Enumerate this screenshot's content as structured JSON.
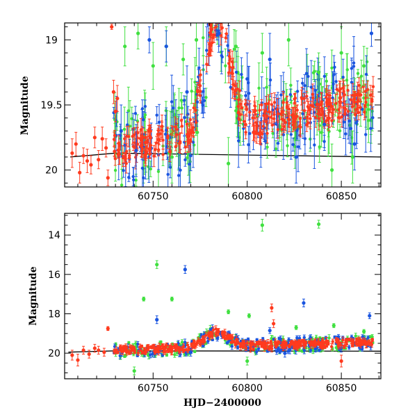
{
  "chart_data": [
    {
      "type": "scatter",
      "title": "",
      "xlabel": "",
      "ylabel": "Magnitude",
      "xlim": [
        60703,
        60871
      ],
      "ylim": [
        20.13,
        18.87
      ],
      "y_inverted": true,
      "xticks": [
        60750,
        60800,
        60850
      ],
      "yticks": [
        19,
        19.5,
        20
      ],
      "ytick_labels": [
        "19",
        "19.5",
        "20"
      ],
      "colors": {
        "red": "#ff3a1e",
        "green": "#40e040",
        "blue": "#1a55e0",
        "model": "#000000"
      },
      "model_line": {
        "x": [
          60706,
          60730,
          60871
        ],
        "y": [
          19.9,
          19.87,
          19.9
        ]
      },
      "series": [
        {
          "color_key": "red",
          "points": [
            [
              60707,
              19.87,
              0.11
            ],
            [
              60709,
              19.8,
              0.09
            ],
            [
              60711,
              20.02,
              0.08
            ],
            [
              60713,
              19.89,
              0.06
            ],
            [
              60715,
              19.93,
              0.09
            ],
            [
              60717,
              19.96,
              0.07
            ],
            [
              60719,
              19.75,
              0.08
            ],
            [
              60721,
              19.92,
              0.07
            ],
            [
              60723,
              19.76,
              0.09
            ],
            [
              60725,
              19.83,
              0.07
            ],
            [
              60726,
              20.06,
              0.06
            ],
            [
              60728,
              18.9,
              0.02
            ],
            [
              60729,
              19.4,
              0.09
            ],
            [
              60730,
              19.55,
              0.08
            ],
            [
              60731,
              19.45,
              0.1
            ]
          ]
        },
        {
          "color_key": "green",
          "points": [
            [
              60735,
              19.05,
              0.15
            ],
            [
              60742,
              18.95,
              0.12
            ],
            [
              60750,
              19.2,
              0.18
            ],
            [
              60757,
              19.05,
              0.15
            ],
            [
              60766,
              19.15,
              0.12
            ],
            [
              60773,
              19.0,
              0.2
            ],
            [
              60794,
              19.05,
              0.12
            ],
            [
              60808,
              19.1,
              0.15
            ],
            [
              60822,
              19.0,
              0.2
            ],
            [
              60838,
              19.25,
              0.15
            ],
            [
              60850,
              19.1,
              0.2
            ],
            [
              60862,
              19.2,
              0.15
            ],
            [
              60760,
              19.9,
              0.2
            ],
            [
              60790,
              19.95,
              0.2
            ],
            [
              60845,
              20.0,
              0.2
            ],
            [
              60856,
              19.9,
              0.2
            ]
          ]
        },
        {
          "color_key": "blue",
          "points": [
            [
              60733,
              19.7,
              0.2
            ],
            [
              60741,
              19.85,
              0.2
            ],
            [
              60748,
              19.0,
              0.1
            ],
            [
              60757,
              19.05,
              0.12
            ],
            [
              60768,
              19.4,
              0.2
            ],
            [
              60785,
              18.95,
              0.1
            ],
            [
              60800,
              19.3,
              0.2
            ],
            [
              60812,
              19.15,
              0.2
            ],
            [
              60826,
              19.9,
              0.2
            ],
            [
              60841,
              19.65,
              0.2
            ],
            [
              60857,
              19.8,
              0.2
            ],
            [
              60866,
              18.95,
              0.1
            ]
          ]
        }
      ]
    },
    {
      "type": "scatter",
      "title": "",
      "xlabel": "HJD−2400000",
      "ylabel": "Magnitude",
      "xlim": [
        60703,
        60871
      ],
      "ylim": [
        21.3,
        12.9
      ],
      "y_inverted": true,
      "xticks": [
        60750,
        60800,
        60850
      ],
      "yticks": [
        14,
        16,
        18,
        20
      ],
      "ytick_labels": [
        "14",
        "16",
        "18",
        "20"
      ],
      "colors": {
        "red": "#ff3a1e",
        "green": "#40e040",
        "blue": "#1a55e0",
        "model": "#000000"
      },
      "model_line": {
        "x": [
          60705,
          60730,
          60871
        ],
        "y": [
          19.95,
          19.88,
          19.9
        ]
      },
      "series": [
        {
          "color_key": "green",
          "points": [
            [
              60808,
              13.5,
              0.3
            ],
            [
              60838,
              13.45,
              0.2
            ],
            [
              60752,
              15.5,
              0.2
            ],
            [
              60745,
              17.25,
              0.1
            ],
            [
              60760,
              17.25,
              0.1
            ],
            [
              60790,
              17.9,
              0.1
            ],
            [
              60801,
              18.1,
              0.1
            ],
            [
              60826,
              18.7,
              0.1
            ],
            [
              60846,
              18.6,
              0.1
            ],
            [
              60862,
              18.9,
              0.1
            ],
            [
              60740,
              20.9,
              0.2
            ],
            [
              60800,
              20.4,
              0.2
            ]
          ]
        },
        {
          "color_key": "blue",
          "points": [
            [
              60767,
              15.75,
              0.2
            ],
            [
              60752,
              18.3,
              0.2
            ],
            [
              60830,
              17.45,
              0.2
            ],
            [
              60865,
              18.1,
              0.15
            ],
            [
              60812,
              18.85,
              0.15
            ],
            [
              60770,
              19.95,
              0.2
            ],
            [
              60820,
              20.0,
              0.2
            ]
          ]
        },
        {
          "color_key": "red",
          "points": [
            [
              60707,
              20.1,
              0.25
            ],
            [
              60710,
              20.35,
              0.3
            ],
            [
              60713,
              19.85,
              0.2
            ],
            [
              60716,
              20.05,
              0.2
            ],
            [
              60719,
              19.75,
              0.2
            ],
            [
              60721,
              19.85,
              0.2
            ],
            [
              60724,
              19.95,
              0.2
            ],
            [
              60726,
              18.75,
              0.1
            ],
            [
              60813,
              17.7,
              0.2
            ],
            [
              60814,
              18.5,
              0.2
            ],
            [
              60850,
              20.4,
              0.3
            ]
          ]
        }
      ]
    }
  ]
}
